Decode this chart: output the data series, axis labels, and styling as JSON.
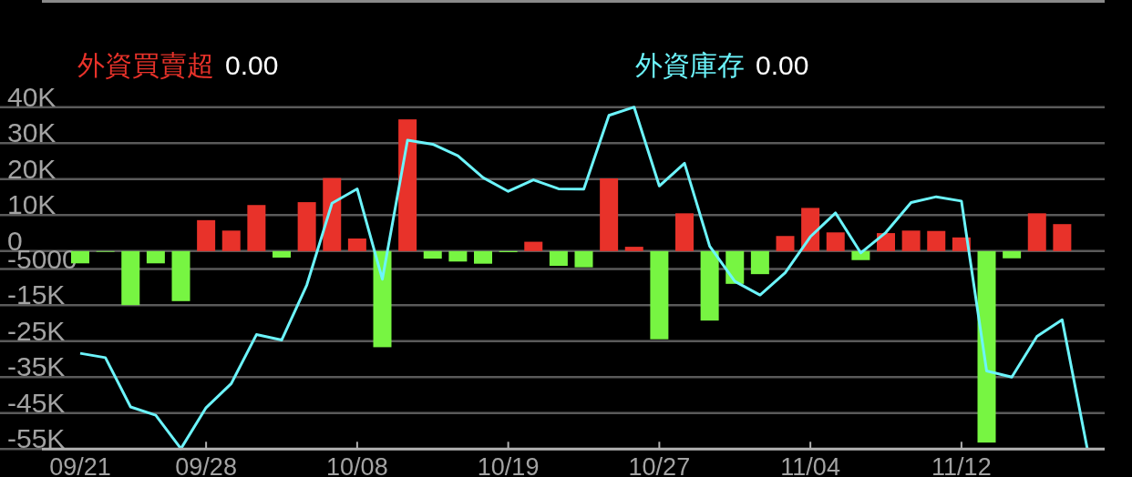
{
  "chart_data": {
    "type": "bar",
    "categories": [
      "09/21",
      null,
      null,
      null,
      null,
      "09/28",
      null,
      null,
      null,
      null,
      null,
      "10/08",
      null,
      null,
      null,
      null,
      null,
      "10/19",
      null,
      null,
      null,
      null,
      null,
      "10/27",
      null,
      null,
      null,
      null,
      null,
      "11/04",
      null,
      null,
      null,
      null,
      null,
      "11/12",
      null,
      null,
      null,
      null,
      null
    ],
    "series": [
      {
        "name": "外資買賣超",
        "color": "#e8322a",
        "colors": [
          "#77f542",
          "#77f542",
          "#77f542",
          "#77f542",
          "#77f542",
          "#e8322a",
          "#e8322a",
          "#e8322a",
          "#77f542",
          "#e8322a",
          "#e8322a",
          "#e8322a",
          "#77f542",
          "#e8322a",
          "#77f542",
          "#77f542",
          "#77f542",
          "#77f542",
          "#e8322a",
          "#77f542",
          "#77f542",
          "#e8322a",
          "#e8322a",
          "#77f542",
          "#e8322a",
          "#77f542",
          "#77f542",
          "#77f542",
          "#e8322a",
          "#e8322a",
          "#e8322a",
          "#77f542",
          "#e8322a",
          "#e8322a",
          "#e8322a",
          "#e8322a",
          "#77f542",
          "#77f542",
          "#e8322a",
          "#e8322a",
          null
        ],
        "values": [
          -3400,
          -200,
          -15000,
          -3400,
          -13900,
          8600,
          5700,
          12800,
          -1800,
          13600,
          20300,
          3500,
          -26700,
          36600,
          -2100,
          -2900,
          -3500,
          -300,
          2600,
          -4100,
          -4500,
          20200,
          1200,
          -24500,
          10500,
          -19300,
          -9100,
          -6400,
          4200,
          12000,
          5200,
          -2500,
          5000,
          5700,
          5600,
          3800,
          -53200,
          -2000,
          10500,
          7500,
          null
        ]
      },
      {
        "name": "外資庫存",
        "type": "line",
        "color": "#6cf4fb",
        "values": [
          -28400,
          -29600,
          -43300,
          -45600,
          -54900,
          -43500,
          -36800,
          -23200,
          -24700,
          -9400,
          13300,
          17300,
          -7800,
          30800,
          29700,
          26500,
          20400,
          16600,
          19800,
          17300,
          17200,
          37700,
          40000,
          18100,
          24400,
          1400,
          -8400,
          -12200,
          -6000,
          4000,
          10600,
          -500,
          5200,
          13500,
          15100,
          13900,
          -33300,
          -35000,
          -23700,
          -19100,
          -55000
        ]
      }
    ],
    "ylim": [
      -55000,
      40000
    ],
    "yticks": [
      {
        "value": 40000,
        "label": "40K"
      },
      {
        "value": 30000,
        "label": "30K"
      },
      {
        "value": 20000,
        "label": "20K"
      },
      {
        "value": 10000,
        "label": "10K"
      },
      0,
      -5000,
      {
        "value": -15000,
        "label": "-15K"
      },
      {
        "value": -25000,
        "label": "-25K"
      },
      {
        "value": -35000,
        "label": "-35K"
      },
      {
        "value": -45000,
        "label": "-45K"
      },
      {
        "value": -55000,
        "label": "-55K"
      }
    ],
    "grid": "y",
    "legend": "top",
    "annotations": [
      "0.00",
      "0.00"
    ]
  }
}
